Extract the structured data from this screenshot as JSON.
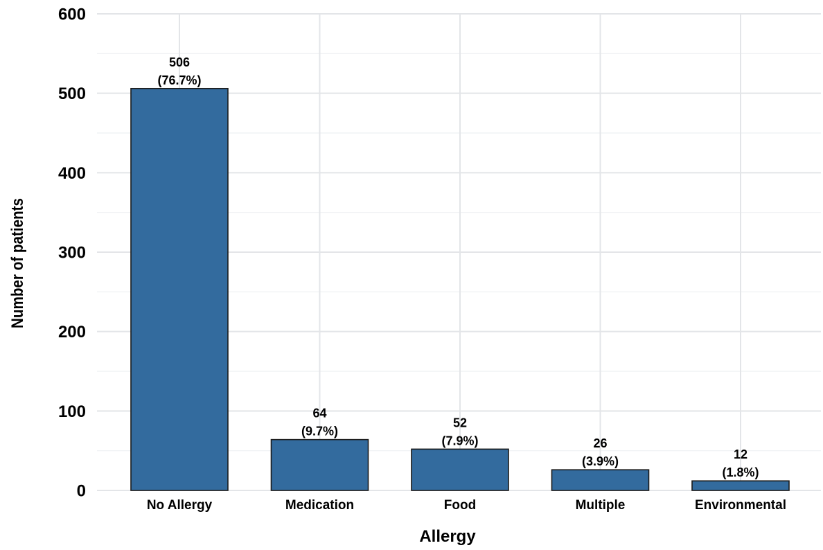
{
  "chart_data": {
    "type": "bar",
    "title": "",
    "xlabel": "Allergy",
    "ylabel": "Number of patients",
    "categories": [
      "No Allergy",
      "Medication",
      "Food",
      "Multiple",
      "Environmental"
    ],
    "values": [
      506,
      64,
      52,
      26,
      12
    ],
    "value_labels": [
      "506",
      "64",
      "52",
      "26",
      "12"
    ],
    "percent_labels": [
      "(76.7%)",
      "(9.7%)",
      "(7.9%)",
      "(3.9%)",
      "(1.8%)"
    ],
    "ylim": [
      0,
      600
    ],
    "yticks": [
      0,
      100,
      200,
      300,
      400,
      500,
      600
    ],
    "ytick_labels": [
      "0",
      "100",
      "200",
      "300",
      "400",
      "500",
      "600"
    ],
    "grid": true,
    "legend": "none",
    "bar_color": "#336b9e",
    "bar_edge_color": "#1a1a1a",
    "grid_color": "#e3e5e8"
  }
}
